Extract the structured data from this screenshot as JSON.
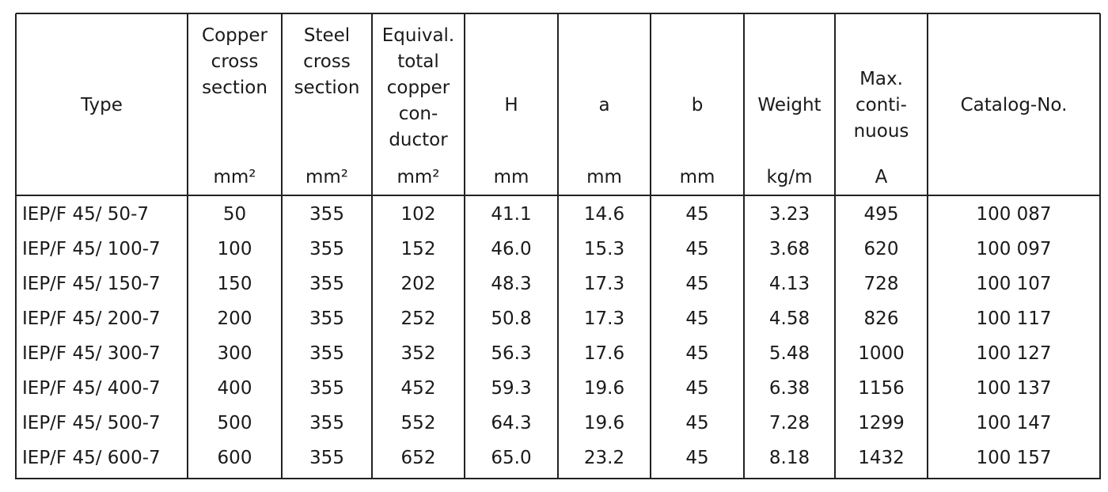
{
  "table": {
    "header": [
      {
        "label": [
          "Type"
        ]
      },
      {
        "label": [
          "Copper",
          "cross",
          "section"
        ],
        "unit": "mm²"
      },
      {
        "label": [
          "Steel",
          "cross",
          "section"
        ],
        "unit": "mm²"
      },
      {
        "label": [
          "Equival.",
          "total",
          "copper",
          "con-",
          "ductor"
        ],
        "unit": "mm²"
      },
      {
        "label": [
          "H"
        ],
        "unit": "mm"
      },
      {
        "label": [
          "a"
        ],
        "unit": "mm"
      },
      {
        "label": [
          "b"
        ],
        "unit": "mm"
      },
      {
        "label": [
          "Weight"
        ],
        "unit": "kg/m"
      },
      {
        "label": [
          "Max.",
          "conti-",
          "nuous"
        ],
        "unit": "A"
      },
      {
        "label": [
          "Catalog-No."
        ]
      }
    ],
    "rows": [
      [
        "IEP/F 45/ 50-7",
        "50",
        "355",
        "102",
        "41.1",
        "14.6",
        "45",
        "3.23",
        "495",
        "100 087"
      ],
      [
        "IEP/F 45/ 100-7",
        "100",
        "355",
        "152",
        "46.0",
        "15.3",
        "45",
        "3.68",
        "620",
        "100 097"
      ],
      [
        "IEP/F 45/ 150-7",
        "150",
        "355",
        "202",
        "48.3",
        "17.3",
        "45",
        "4.13",
        "728",
        "100 107"
      ],
      [
        "IEP/F 45/ 200-7",
        "200",
        "355",
        "252",
        "50.8",
        "17.3",
        "45",
        "4.58",
        "826",
        "100 117"
      ],
      [
        "IEP/F 45/ 300-7",
        "300",
        "355",
        "352",
        "56.3",
        "17.6",
        "45",
        "5.48",
        "1000",
        "100 127"
      ],
      [
        "IEP/F 45/ 400-7",
        "400",
        "355",
        "452",
        "59.3",
        "19.6",
        "45",
        "6.38",
        "1156",
        "100 137"
      ],
      [
        "IEP/F 45/ 500-7",
        "500",
        "355",
        "552",
        "64.3",
        "19.6",
        "45",
        "7.28",
        "1299",
        "100 147"
      ],
      [
        "IEP/F 45/ 600-7",
        "600",
        "355",
        "652",
        "65.0",
        "23.2",
        "45",
        "8.18",
        "1432",
        "100 157"
      ]
    ]
  }
}
